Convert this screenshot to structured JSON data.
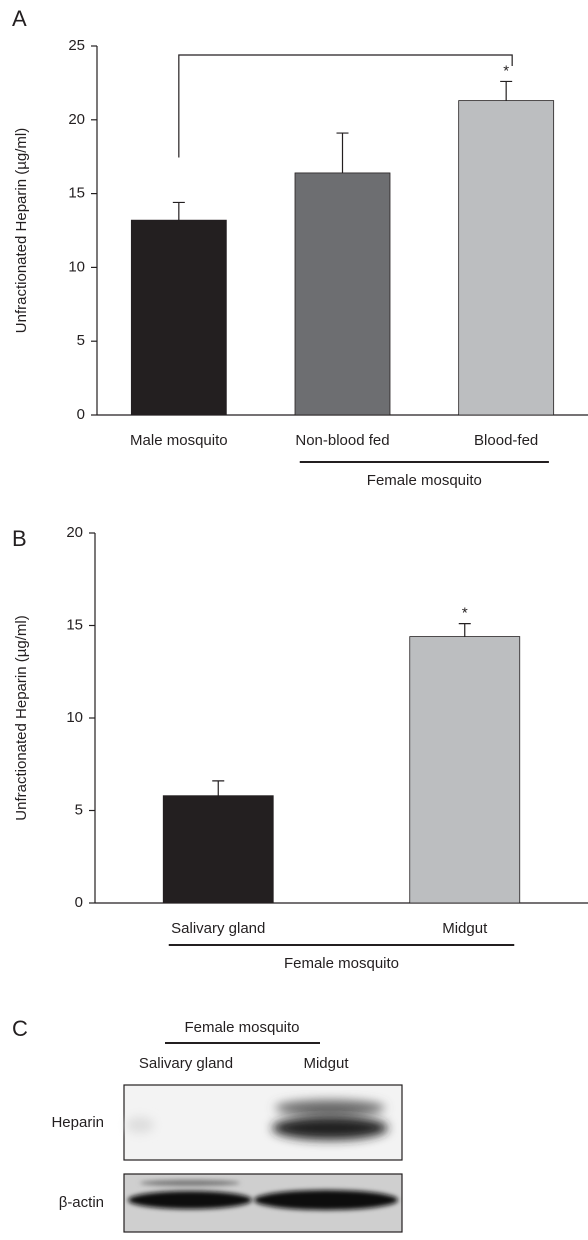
{
  "chart_data": [
    {
      "type": "bar",
      "panel": "A",
      "y_label": "Unfractionated Heparin (µg/ml)",
      "categories": [
        "Male mosquito",
        "Non-blood fed",
        "Blood-fed"
      ],
      "values": [
        13.2,
        16.4,
        21.3
      ],
      "errors": [
        1.2,
        2.7,
        1.3
      ],
      "colors": [
        "#231f20",
        "#6d6e71",
        "#bcbec0"
      ],
      "ylim": [
        0,
        25
      ],
      "yticks": [
        0,
        5,
        10,
        15,
        20,
        25
      ],
      "annotations": [
        {
          "category": "Blood-fed",
          "text": "*"
        }
      ],
      "groups": [
        {
          "label": "Female mosquito",
          "categories": [
            "Non-blood fed",
            "Blood-fed"
          ]
        }
      ]
    },
    {
      "type": "bar",
      "panel": "B",
      "y_label": "Unfractionated Heparin (µg/ml)",
      "categories": [
        "Salivary gland",
        "Midgut"
      ],
      "values": [
        5.8,
        14.4
      ],
      "errors": [
        0.8,
        0.7
      ],
      "colors": [
        "#231f20",
        "#bcbec0"
      ],
      "ylim": [
        0,
        20
      ],
      "yticks": [
        0,
        5,
        10,
        15,
        20
      ],
      "annotations": [
        {
          "category": "Midgut",
          "text": "*"
        }
      ],
      "groups": [
        {
          "label": "Female mosquito",
          "categories": [
            "Salivary gland",
            "Midgut"
          ]
        }
      ]
    }
  ],
  "panel_c": {
    "panel": "C",
    "group_label": "Female mosquito",
    "columns": [
      "Salivary gland",
      "Midgut"
    ],
    "rows": [
      "Heparin",
      "β-actin"
    ]
  }
}
